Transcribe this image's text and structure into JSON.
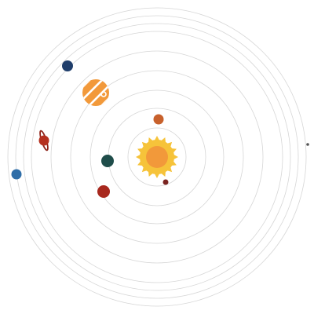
{
  "diagram": {
    "sun": {
      "icon": "sun-icon",
      "ray_color": "#f6c33a",
      "disc_color": "#f6c33a",
      "core_color": "#f2993a"
    },
    "orbit_color": "#d6d6d6",
    "planets": [
      {
        "name": "planet-mercury",
        "icon": "small-dark-red-planet-icon",
        "color": "#7a2420"
      },
      {
        "name": "planet-venus",
        "icon": "orange-planet-icon",
        "color": "#c8612c"
      },
      {
        "name": "planet-earth",
        "icon": "dark-teal-planet-icon",
        "color": "#1f4d4a"
      },
      {
        "name": "planet-mars",
        "icon": "red-planet-icon",
        "color": "#a8281e"
      },
      {
        "name": "planet-jupiter",
        "icon": "striped-orange-planet-icon",
        "color": "#f2993a",
        "stripe_color": "#ffffff"
      },
      {
        "name": "planet-saturn",
        "icon": "ringed-red-planet-icon",
        "color": "#b5301f",
        "ring_color": "#8e241a"
      },
      {
        "name": "planet-uranus",
        "icon": "dark-blue-planet-icon",
        "color": "#1f3e6b"
      },
      {
        "name": "planet-neptune",
        "icon": "blue-planet-icon",
        "color": "#2f6ea8"
      },
      {
        "name": "planet-pluto",
        "icon": "tiny-dark-dot-icon",
        "color": "#555555"
      }
    ]
  }
}
